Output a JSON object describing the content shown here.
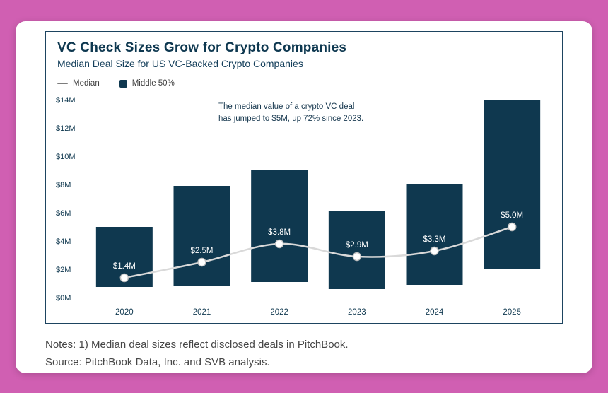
{
  "chart": {
    "title": "VC Check Sizes Grow for Crypto Companies",
    "subtitle": "Median Deal Size for US VC-Backed Crypto Companies",
    "legend": [
      {
        "label": "Median",
        "swatch": "line"
      },
      {
        "label": "Middle 50%",
        "swatch": "box"
      }
    ],
    "annotation_line1": "The median value of a crypto VC deal",
    "annotation_line2": "has jumped to $5M, up 72% since 2023."
  },
  "chart_data": {
    "type": "bar",
    "title": "VC Check Sizes Grow for Crypto Companies",
    "subtitle": "Median Deal Size for US VC-Backed Crypto Companies",
    "categories": [
      "2020",
      "2021",
      "2022",
      "2023",
      "2024",
      "2025"
    ],
    "series": [
      {
        "name": "Middle 50%",
        "type": "range_bar",
        "low": [
          0.75,
          0.8,
          1.1,
          0.6,
          0.9,
          2.0
        ],
        "high": [
          5.0,
          7.9,
          9.0,
          6.1,
          8.0,
          14.0
        ]
      },
      {
        "name": "Median",
        "type": "line",
        "values": [
          1.4,
          2.5,
          3.8,
          2.9,
          3.3,
          5.0
        ],
        "point_labels": [
          "$1.4M",
          "$2.5M",
          "$3.8M",
          "$2.9M",
          "$3.3M",
          "$5.0M"
        ]
      }
    ],
    "xlabel": "",
    "ylabel": "",
    "ylim": [
      0,
      14
    ],
    "yticks": [
      0,
      2,
      4,
      6,
      8,
      10,
      12,
      14
    ],
    "ytick_labels": [
      "$0M",
      "$2M",
      "$4M",
      "$6M",
      "$8M",
      "$10M",
      "$12M",
      "$14M"
    ],
    "grid": false,
    "legend_position": "top-left",
    "colors": {
      "bar": "#0f384f",
      "median_line": "#d9d9d9",
      "dot_fill": "#ffffff",
      "dot_stroke": "#c2c2c2",
      "point_label": "#ffffff",
      "axis_text": "#0f384f",
      "background_pink": "#d05fb2"
    }
  },
  "notes": {
    "line1": "Notes: 1) Median deal sizes reflect disclosed deals in PitchBook.",
    "line2": "Source: PitchBook Data, Inc. and SVB analysis."
  }
}
